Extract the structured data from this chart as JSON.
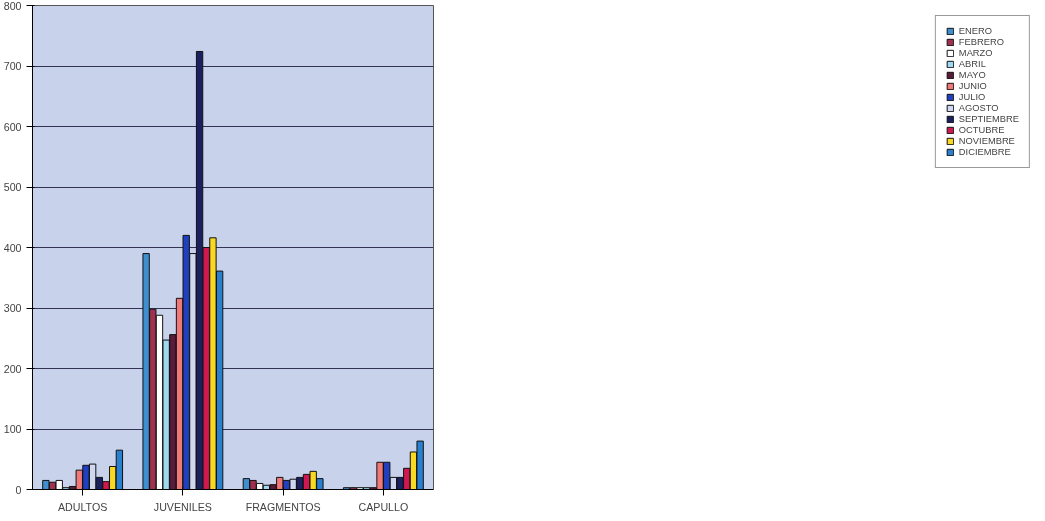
{
  "chart_data": {
    "type": "bar",
    "categories": [
      "ADULTOS",
      "JUVENILES",
      "FRAGMENTOS",
      "CAPULLO"
    ],
    "ylim": [
      0,
      800
    ],
    "yticks": [
      0,
      100,
      200,
      300,
      400,
      500,
      600,
      700,
      800
    ],
    "grid": "y",
    "legend": "right",
    "series": [
      {
        "name": "ENERO",
        "color": "#3f8fd0",
        "values": [
          15,
          390,
          18,
          3
        ]
      },
      {
        "name": "FEBRERO",
        "color": "#a03050",
        "values": [
          12,
          298,
          15,
          3
        ]
      },
      {
        "name": "MARZO",
        "color": "#ffffff",
        "values": [
          15,
          288,
          10,
          3
        ]
      },
      {
        "name": "ABRIL",
        "color": "#a0d8f0",
        "values": [
          3,
          247,
          7,
          3
        ]
      },
      {
        "name": "MAYO",
        "color": "#5a1a3a",
        "values": [
          5,
          256,
          8,
          3
        ]
      },
      {
        "name": "JUNIO",
        "color": "#f07878",
        "values": [
          32,
          316,
          20,
          45
        ]
      },
      {
        "name": "JULIO",
        "color": "#2040c0",
        "values": [
          40,
          420,
          15,
          45
        ]
      },
      {
        "name": "AGOSTO",
        "color": "#d0d8f0",
        "values": [
          42,
          390,
          17,
          20
        ]
      },
      {
        "name": "SEPTIEMBRE",
        "color": "#1a2060",
        "values": [
          20,
          724,
          20,
          20
        ]
      },
      {
        "name": "OCTUBRE",
        "color": "#d01850",
        "values": [
          13,
          400,
          25,
          35
        ]
      },
      {
        "name": "NOVIEMBRE",
        "color": "#f8d820",
        "values": [
          38,
          416,
          30,
          62
        ]
      },
      {
        "name": "DICIEMBRE",
        "color": "#2a80d0",
        "values": [
          65,
          361,
          18,
          80
        ]
      }
    ]
  }
}
